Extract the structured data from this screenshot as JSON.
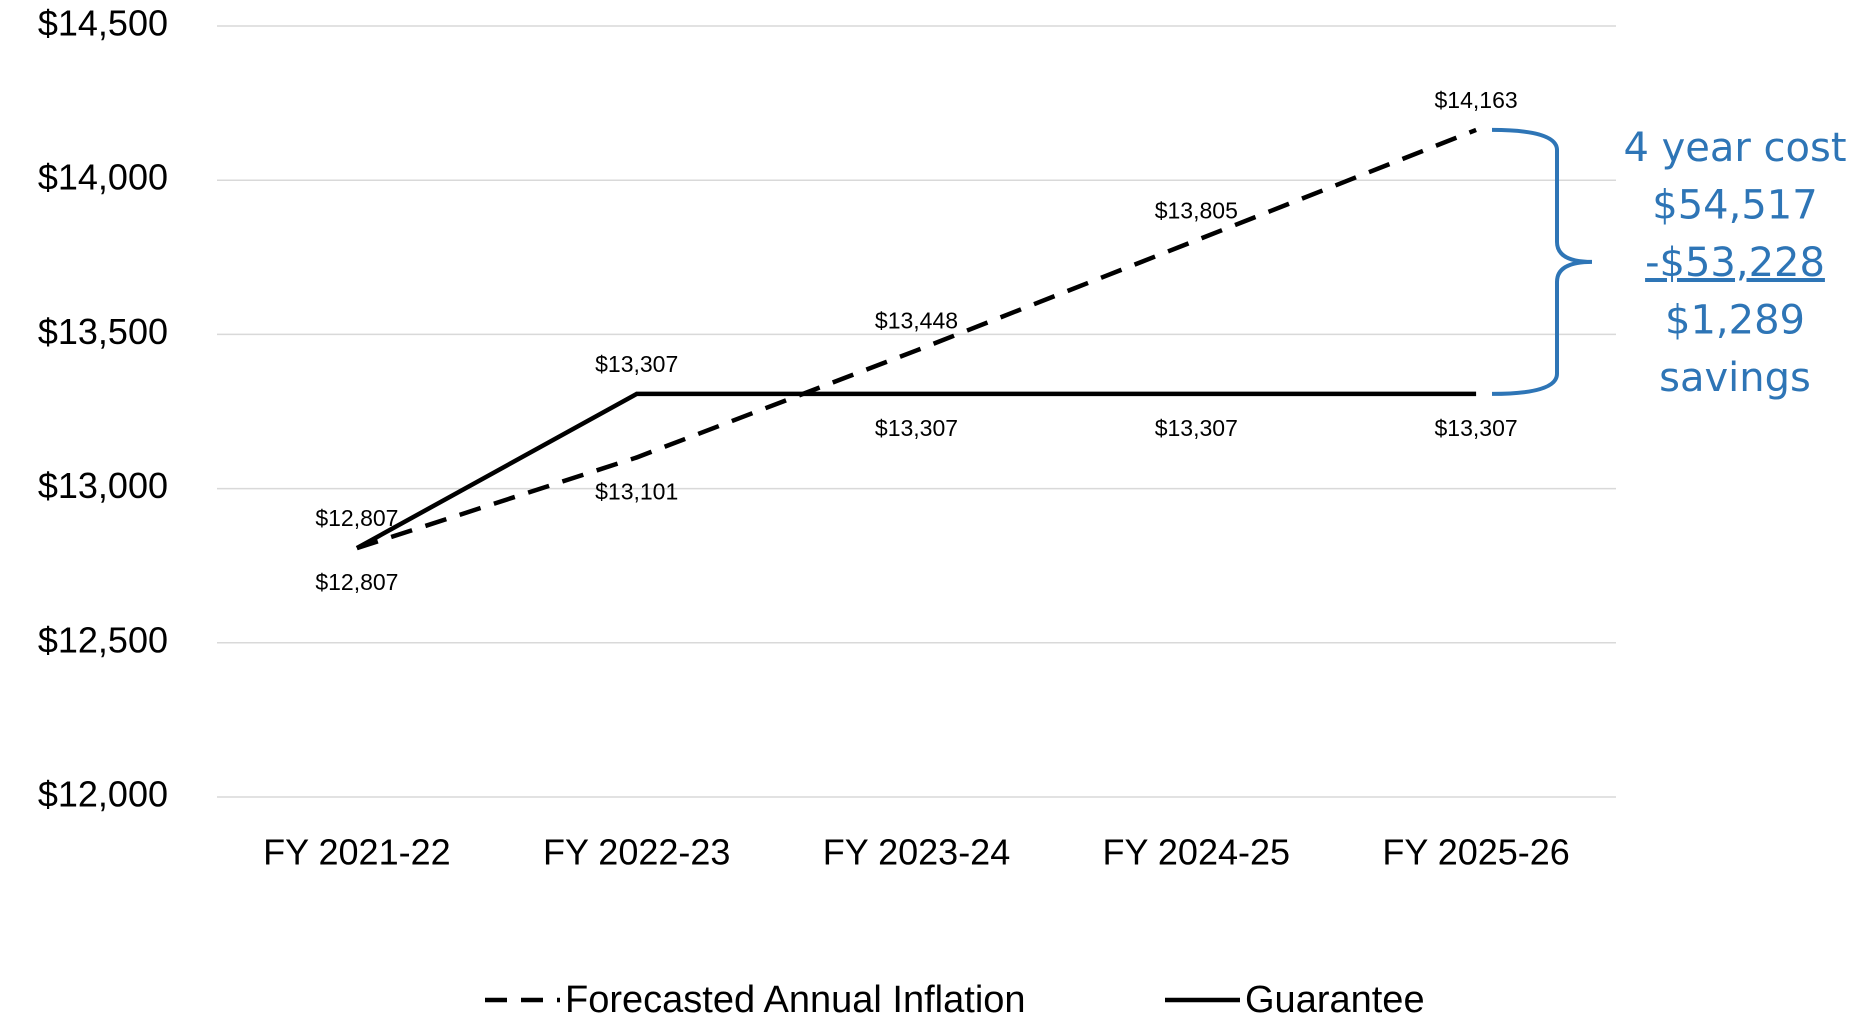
{
  "chart_data": {
    "type": "line",
    "categories": [
      "FY 2021-22",
      "FY 2022-23",
      "FY 2023-24",
      "FY 2024-25",
      "FY 2025-26"
    ],
    "series": [
      {
        "name": "Forecasted Annual Inflation",
        "color": "#000000",
        "dashed": true,
        "values": [
          12807,
          13101,
          13448,
          13805,
          14163
        ],
        "value_labels": [
          "$12,807",
          "$13,101",
          "$13,448",
          "$13,805",
          "$14,163"
        ]
      },
      {
        "name": "Guarantee",
        "color": "#000000",
        "dashed": false,
        "values": [
          12807,
          13307,
          13307,
          13307,
          13307
        ],
        "value_labels": [
          "$12,807",
          "$13,307",
          "$13,307",
          "$13,307",
          "$13,307"
        ]
      }
    ],
    "ylim": [
      12000,
      14500
    ],
    "yticks": [
      {
        "value": 12000,
        "label": "$12,000"
      },
      {
        "value": 12500,
        "label": "$12,500"
      },
      {
        "value": 13000,
        "label": "$13,000"
      },
      {
        "value": 13500,
        "label": "$13,500"
      },
      {
        "value": 14000,
        "label": "$14,000"
      },
      {
        "value": 14500,
        "label": "$14,500"
      }
    ],
    "grid": true,
    "legend": "bottom",
    "annotation": {
      "color": "#2e75b6",
      "lines": [
        "4 year cost",
        "$54,517",
        "-$53,228",
        "$1,289",
        "savings"
      ]
    }
  }
}
